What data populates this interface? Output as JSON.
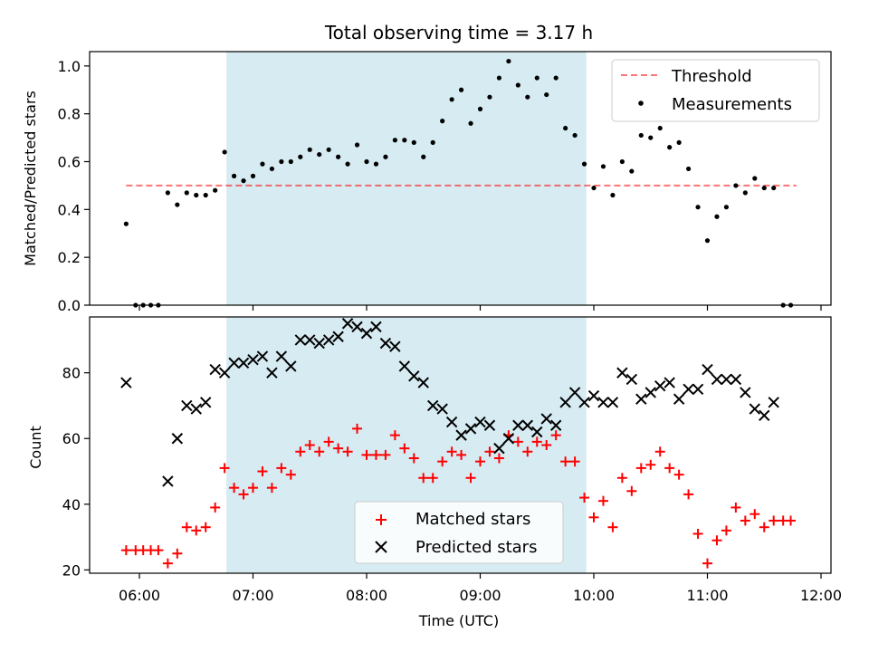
{
  "chart_data": {
    "title": "Total observing time = 3.17 h",
    "xlabel": "Time (UTC)",
    "x_ticks": [
      "06:00",
      "07:00",
      "08:00",
      "09:00",
      "10:00",
      "11:00",
      "12:00"
    ],
    "shaded_interval": [
      "06:46",
      "09:56"
    ],
    "colors": {
      "shade": "#add8e6",
      "threshold": "#ff0000",
      "matched": "#ff0000",
      "predicted": "#000000",
      "ratio": "#000000"
    },
    "top": {
      "type": "scatter",
      "ylabel": "Matched/Predicted stars",
      "ylim": [
        0,
        1.06
      ],
      "yticks": [
        "0.0",
        "0.2",
        "0.4",
        "0.6",
        "0.8",
        "1.0"
      ],
      "threshold": {
        "value": 0.5,
        "x_range": [
          "05:53",
          "11:47"
        ]
      },
      "legend": [
        "Threshold",
        "Measurements"
      ],
      "legend_position": "top-right",
      "measurements": [
        {
          "x": "05:53",
          "y": 0.34
        },
        {
          "x": "05:58",
          "y": 0.0
        },
        {
          "x": "06:02",
          "y": 0.0
        },
        {
          "x": "06:06",
          "y": 0.0
        },
        {
          "x": "06:10",
          "y": 0.0
        },
        {
          "x": "06:15",
          "y": 0.47
        },
        {
          "x": "06:20",
          "y": 0.42
        },
        {
          "x": "06:25",
          "y": 0.47
        },
        {
          "x": "06:30",
          "y": 0.46
        },
        {
          "x": "06:35",
          "y": 0.46
        },
        {
          "x": "06:40",
          "y": 0.48
        },
        {
          "x": "06:45",
          "y": 0.64
        },
        {
          "x": "06:50",
          "y": 0.54
        },
        {
          "x": "06:55",
          "y": 0.52
        },
        {
          "x": "07:00",
          "y": 0.54
        },
        {
          "x": "07:05",
          "y": 0.59
        },
        {
          "x": "07:10",
          "y": 0.57
        },
        {
          "x": "07:15",
          "y": 0.6
        },
        {
          "x": "07:20",
          "y": 0.6
        },
        {
          "x": "07:25",
          "y": 0.62
        },
        {
          "x": "07:30",
          "y": 0.65
        },
        {
          "x": "07:35",
          "y": 0.63
        },
        {
          "x": "07:40",
          "y": 0.65
        },
        {
          "x": "07:45",
          "y": 0.62
        },
        {
          "x": "07:50",
          "y": 0.59
        },
        {
          "x": "07:55",
          "y": 0.67
        },
        {
          "x": "08:00",
          "y": 0.6
        },
        {
          "x": "08:05",
          "y": 0.59
        },
        {
          "x": "08:10",
          "y": 0.62
        },
        {
          "x": "08:15",
          "y": 0.69
        },
        {
          "x": "08:20",
          "y": 0.69
        },
        {
          "x": "08:25",
          "y": 0.68
        },
        {
          "x": "08:30",
          "y": 0.62
        },
        {
          "x": "08:35",
          "y": 0.68
        },
        {
          "x": "08:40",
          "y": 0.77
        },
        {
          "x": "08:45",
          "y": 0.86
        },
        {
          "x": "08:50",
          "y": 0.9
        },
        {
          "x": "08:55",
          "y": 0.76
        },
        {
          "x": "09:00",
          "y": 0.82
        },
        {
          "x": "09:05",
          "y": 0.87
        },
        {
          "x": "09:10",
          "y": 0.95
        },
        {
          "x": "09:15",
          "y": 1.02
        },
        {
          "x": "09:20",
          "y": 0.92
        },
        {
          "x": "09:25",
          "y": 0.87
        },
        {
          "x": "09:30",
          "y": 0.95
        },
        {
          "x": "09:35",
          "y": 0.88
        },
        {
          "x": "09:40",
          "y": 0.95
        },
        {
          "x": "09:45",
          "y": 0.74
        },
        {
          "x": "09:50",
          "y": 0.71
        },
        {
          "x": "09:55",
          "y": 0.59
        },
        {
          "x": "10:00",
          "y": 0.49
        },
        {
          "x": "10:05",
          "y": 0.58
        },
        {
          "x": "10:10",
          "y": 0.46
        },
        {
          "x": "10:15",
          "y": 0.6
        },
        {
          "x": "10:20",
          "y": 0.56
        },
        {
          "x": "10:25",
          "y": 0.71
        },
        {
          "x": "10:30",
          "y": 0.7
        },
        {
          "x": "10:35",
          "y": 0.74
        },
        {
          "x": "10:40",
          "y": 0.66
        },
        {
          "x": "10:45",
          "y": 0.68
        },
        {
          "x": "10:50",
          "y": 0.57
        },
        {
          "x": "10:55",
          "y": 0.41
        },
        {
          "x": "11:00",
          "y": 0.27
        },
        {
          "x": "11:05",
          "y": 0.37
        },
        {
          "x": "11:10",
          "y": 0.41
        },
        {
          "x": "11:15",
          "y": 0.5
        },
        {
          "x": "11:20",
          "y": 0.47
        },
        {
          "x": "11:25",
          "y": 0.53
        },
        {
          "x": "11:30",
          "y": 0.49
        },
        {
          "x": "11:35",
          "y": 0.49
        },
        {
          "x": "11:40",
          "y": 0.0
        },
        {
          "x": "11:44",
          "y": 0.0
        }
      ]
    },
    "bottom": {
      "type": "scatter",
      "ylabel": "Count",
      "ylim": [
        19,
        97
      ],
      "yticks": [
        "20",
        "40",
        "60",
        "80"
      ],
      "legend": [
        "Matched stars",
        "Predicted stars"
      ],
      "legend_position": "lower-center",
      "matched": [
        {
          "x": "05:53",
          "y": 26
        },
        {
          "x": "05:58",
          "y": 26
        },
        {
          "x": "06:02",
          "y": 26
        },
        {
          "x": "06:06",
          "y": 26
        },
        {
          "x": "06:10",
          "y": 26
        },
        {
          "x": "06:15",
          "y": 22
        },
        {
          "x": "06:20",
          "y": 25
        },
        {
          "x": "06:25",
          "y": 33
        },
        {
          "x": "06:30",
          "y": 32
        },
        {
          "x": "06:35",
          "y": 33
        },
        {
          "x": "06:40",
          "y": 39
        },
        {
          "x": "06:45",
          "y": 51
        },
        {
          "x": "06:50",
          "y": 45
        },
        {
          "x": "06:55",
          "y": 43
        },
        {
          "x": "07:00",
          "y": 45
        },
        {
          "x": "07:05",
          "y": 50
        },
        {
          "x": "07:10",
          "y": 45
        },
        {
          "x": "07:15",
          "y": 51
        },
        {
          "x": "07:20",
          "y": 49
        },
        {
          "x": "07:25",
          "y": 56
        },
        {
          "x": "07:30",
          "y": 58
        },
        {
          "x": "07:35",
          "y": 56
        },
        {
          "x": "07:40",
          "y": 59
        },
        {
          "x": "07:45",
          "y": 57
        },
        {
          "x": "07:50",
          "y": 56
        },
        {
          "x": "07:55",
          "y": 63
        },
        {
          "x": "08:00",
          "y": 55
        },
        {
          "x": "08:05",
          "y": 55
        },
        {
          "x": "08:10",
          "y": 55
        },
        {
          "x": "08:15",
          "y": 61
        },
        {
          "x": "08:20",
          "y": 57
        },
        {
          "x": "08:25",
          "y": 54
        },
        {
          "x": "08:30",
          "y": 48
        },
        {
          "x": "08:35",
          "y": 48
        },
        {
          "x": "08:40",
          "y": 53
        },
        {
          "x": "08:45",
          "y": 56
        },
        {
          "x": "08:50",
          "y": 55
        },
        {
          "x": "08:55",
          "y": 48
        },
        {
          "x": "09:00",
          "y": 53
        },
        {
          "x": "09:05",
          "y": 56
        },
        {
          "x": "09:10",
          "y": 54
        },
        {
          "x": "09:15",
          "y": 61
        },
        {
          "x": "09:20",
          "y": 59
        },
        {
          "x": "09:25",
          "y": 56
        },
        {
          "x": "09:30",
          "y": 59
        },
        {
          "x": "09:35",
          "y": 58
        },
        {
          "x": "09:40",
          "y": 61
        },
        {
          "x": "09:45",
          "y": 53
        },
        {
          "x": "09:50",
          "y": 53
        },
        {
          "x": "09:55",
          "y": 42
        },
        {
          "x": "10:00",
          "y": 36
        },
        {
          "x": "10:05",
          "y": 41
        },
        {
          "x": "10:10",
          "y": 33
        },
        {
          "x": "10:15",
          "y": 48
        },
        {
          "x": "10:20",
          "y": 44
        },
        {
          "x": "10:25",
          "y": 51
        },
        {
          "x": "10:30",
          "y": 52
        },
        {
          "x": "10:35",
          "y": 56
        },
        {
          "x": "10:40",
          "y": 51
        },
        {
          "x": "10:45",
          "y": 49
        },
        {
          "x": "10:50",
          "y": 43
        },
        {
          "x": "10:55",
          "y": 31
        },
        {
          "x": "11:00",
          "y": 22
        },
        {
          "x": "11:05",
          "y": 29
        },
        {
          "x": "11:10",
          "y": 32
        },
        {
          "x": "11:15",
          "y": 39
        },
        {
          "x": "11:20",
          "y": 35
        },
        {
          "x": "11:25",
          "y": 37
        },
        {
          "x": "11:30",
          "y": 33
        },
        {
          "x": "11:35",
          "y": 35
        },
        {
          "x": "11:40",
          "y": 35
        },
        {
          "x": "11:44",
          "y": 35
        }
      ],
      "predicted": [
        {
          "x": "05:53",
          "y": 77
        },
        {
          "x": "06:15",
          "y": 47
        },
        {
          "x": "06:20",
          "y": 60
        },
        {
          "x": "06:25",
          "y": 70
        },
        {
          "x": "06:30",
          "y": 69
        },
        {
          "x": "06:35",
          "y": 71
        },
        {
          "x": "06:40",
          "y": 81
        },
        {
          "x": "06:45",
          "y": 80
        },
        {
          "x": "06:50",
          "y": 83
        },
        {
          "x": "06:55",
          "y": 83
        },
        {
          "x": "07:00",
          "y": 84
        },
        {
          "x": "07:05",
          "y": 85
        },
        {
          "x": "07:10",
          "y": 80
        },
        {
          "x": "07:15",
          "y": 85
        },
        {
          "x": "07:20",
          "y": 82
        },
        {
          "x": "07:25",
          "y": 90
        },
        {
          "x": "07:30",
          "y": 90
        },
        {
          "x": "07:35",
          "y": 89
        },
        {
          "x": "07:40",
          "y": 90
        },
        {
          "x": "07:45",
          "y": 91
        },
        {
          "x": "07:50",
          "y": 95
        },
        {
          "x": "07:55",
          "y": 94
        },
        {
          "x": "08:00",
          "y": 92
        },
        {
          "x": "08:05",
          "y": 94
        },
        {
          "x": "08:10",
          "y": 89
        },
        {
          "x": "08:15",
          "y": 88
        },
        {
          "x": "08:20",
          "y": 82
        },
        {
          "x": "08:25",
          "y": 79
        },
        {
          "x": "08:30",
          "y": 77
        },
        {
          "x": "08:35",
          "y": 70
        },
        {
          "x": "08:40",
          "y": 69
        },
        {
          "x": "08:45",
          "y": 65
        },
        {
          "x": "08:50",
          "y": 61
        },
        {
          "x": "08:55",
          "y": 63
        },
        {
          "x": "09:00",
          "y": 65
        },
        {
          "x": "09:05",
          "y": 64
        },
        {
          "x": "09:10",
          "y": 57
        },
        {
          "x": "09:15",
          "y": 60
        },
        {
          "x": "09:20",
          "y": 64
        },
        {
          "x": "09:25",
          "y": 64
        },
        {
          "x": "09:30",
          "y": 62
        },
        {
          "x": "09:35",
          "y": 66
        },
        {
          "x": "09:40",
          "y": 64
        },
        {
          "x": "09:45",
          "y": 71
        },
        {
          "x": "09:50",
          "y": 74
        },
        {
          "x": "09:55",
          "y": 71
        },
        {
          "x": "10:00",
          "y": 73
        },
        {
          "x": "10:05",
          "y": 71
        },
        {
          "x": "10:10",
          "y": 71
        },
        {
          "x": "10:15",
          "y": 80
        },
        {
          "x": "10:20",
          "y": 78
        },
        {
          "x": "10:25",
          "y": 72
        },
        {
          "x": "10:30",
          "y": 74
        },
        {
          "x": "10:35",
          "y": 76
        },
        {
          "x": "10:40",
          "y": 77
        },
        {
          "x": "10:45",
          "y": 72
        },
        {
          "x": "10:50",
          "y": 75
        },
        {
          "x": "10:55",
          "y": 75
        },
        {
          "x": "11:00",
          "y": 81
        },
        {
          "x": "11:05",
          "y": 78
        },
        {
          "x": "11:10",
          "y": 78
        },
        {
          "x": "11:15",
          "y": 78
        },
        {
          "x": "11:20",
          "y": 74
        },
        {
          "x": "11:25",
          "y": 69
        },
        {
          "x": "11:30",
          "y": 67
        },
        {
          "x": "11:35",
          "y": 71
        }
      ]
    }
  }
}
